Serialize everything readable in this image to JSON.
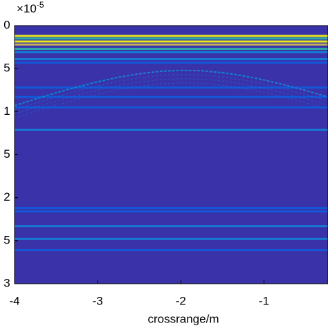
{
  "chart_data": {
    "type": "heatmap",
    "exponent": "×10",
    "exponent_power": "-5",
    "xlabel": "crossrange/m",
    "xlim": [
      -4,
      -0.23
    ],
    "xticks": [
      -4,
      -3,
      -2,
      -1
    ],
    "ylim": [
      0,
      3
    ],
    "yticks": [
      0,
      {
        "value": 0.5,
        "label": "5"
      },
      1,
      {
        "value": 1.5,
        "label": "5"
      },
      2,
      {
        "value": 2.5,
        "label": "5"
      },
      3
    ],
    "y_inverted": true,
    "colormap": [
      "#352a87",
      "#0f5cdd",
      "#1481d6",
      "#06a4ca",
      "#2eb7a4",
      "#87bf77",
      "#d1bb59",
      "#fec832",
      "#f9fb0e"
    ],
    "background_level": 0.04,
    "bands": {
      "y": [
        0.12,
        0.15,
        0.185,
        0.22,
        0.27,
        0.31,
        0.39,
        0.43,
        0.72,
        0.83,
        0.95,
        1.21,
        2.12,
        2.16,
        2.33,
        2.48,
        2.61
      ],
      "level": [
        0.95,
        0.5,
        1.0,
        0.8,
        0.45,
        0.3,
        0.2,
        0.15,
        0.15,
        0.15,
        0.18,
        0.2,
        0.15,
        0.15,
        0.2,
        0.25,
        0.18
      ]
    },
    "hyperbola": {
      "x": [
        -4,
        -3.75,
        -3.5,
        -3.25,
        -3,
        -2.75,
        -2.5,
        -2.25,
        -2,
        -1.75,
        -1.5,
        -1.25,
        -1,
        -0.75,
        -0.5,
        -0.25
      ],
      "y": [
        0.93,
        0.854,
        0.781,
        0.714,
        0.653,
        0.601,
        0.56,
        0.532,
        0.52,
        0.525,
        0.547,
        0.583,
        0.631,
        0.689,
        0.754,
        0.824
      ],
      "level": 0.3
    }
  }
}
